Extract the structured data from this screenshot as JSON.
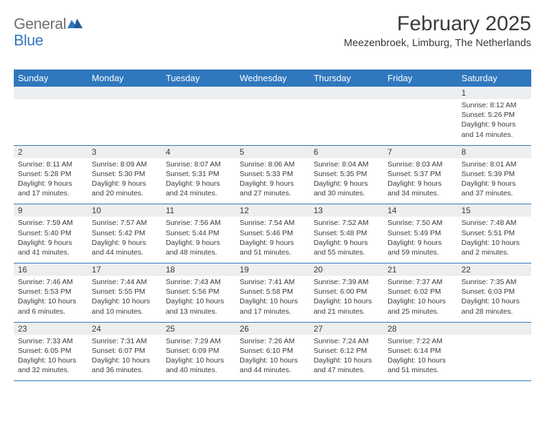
{
  "logo": {
    "general": "General",
    "blue": "Blue"
  },
  "title": "February 2025",
  "location": "Meezenbroek, Limburg, The Netherlands",
  "colors": {
    "header_bg": "#2f78bd",
    "header_fg": "#ffffff",
    "daynum_bg": "#eceeef",
    "text": "#3a3a3a",
    "logo_gray": "#6b6f73",
    "logo_blue": "#2f78bd",
    "rule": "#2f78bd",
    "background": "#ffffff"
  },
  "day_headers": [
    "Sunday",
    "Monday",
    "Tuesday",
    "Wednesday",
    "Thursday",
    "Friday",
    "Saturday"
  ],
  "weeks": [
    [
      {
        "n": "",
        "lines": [
          "",
          "",
          "",
          ""
        ]
      },
      {
        "n": "",
        "lines": [
          "",
          "",
          "",
          ""
        ]
      },
      {
        "n": "",
        "lines": [
          "",
          "",
          "",
          ""
        ]
      },
      {
        "n": "",
        "lines": [
          "",
          "",
          "",
          ""
        ]
      },
      {
        "n": "",
        "lines": [
          "",
          "",
          "",
          ""
        ]
      },
      {
        "n": "",
        "lines": [
          "",
          "",
          "",
          ""
        ]
      },
      {
        "n": "1",
        "lines": [
          "Sunrise: 8:12 AM",
          "Sunset: 5:26 PM",
          "Daylight: 9 hours",
          "and 14 minutes."
        ]
      }
    ],
    [
      {
        "n": "2",
        "lines": [
          "Sunrise: 8:11 AM",
          "Sunset: 5:28 PM",
          "Daylight: 9 hours",
          "and 17 minutes."
        ]
      },
      {
        "n": "3",
        "lines": [
          "Sunrise: 8:09 AM",
          "Sunset: 5:30 PM",
          "Daylight: 9 hours",
          "and 20 minutes."
        ]
      },
      {
        "n": "4",
        "lines": [
          "Sunrise: 8:07 AM",
          "Sunset: 5:31 PM",
          "Daylight: 9 hours",
          "and 24 minutes."
        ]
      },
      {
        "n": "5",
        "lines": [
          "Sunrise: 8:06 AM",
          "Sunset: 5:33 PM",
          "Daylight: 9 hours",
          "and 27 minutes."
        ]
      },
      {
        "n": "6",
        "lines": [
          "Sunrise: 8:04 AM",
          "Sunset: 5:35 PM",
          "Daylight: 9 hours",
          "and 30 minutes."
        ]
      },
      {
        "n": "7",
        "lines": [
          "Sunrise: 8:03 AM",
          "Sunset: 5:37 PM",
          "Daylight: 9 hours",
          "and 34 minutes."
        ]
      },
      {
        "n": "8",
        "lines": [
          "Sunrise: 8:01 AM",
          "Sunset: 5:39 PM",
          "Daylight: 9 hours",
          "and 37 minutes."
        ]
      }
    ],
    [
      {
        "n": "9",
        "lines": [
          "Sunrise: 7:59 AM",
          "Sunset: 5:40 PM",
          "Daylight: 9 hours",
          "and 41 minutes."
        ]
      },
      {
        "n": "10",
        "lines": [
          "Sunrise: 7:57 AM",
          "Sunset: 5:42 PM",
          "Daylight: 9 hours",
          "and 44 minutes."
        ]
      },
      {
        "n": "11",
        "lines": [
          "Sunrise: 7:56 AM",
          "Sunset: 5:44 PM",
          "Daylight: 9 hours",
          "and 48 minutes."
        ]
      },
      {
        "n": "12",
        "lines": [
          "Sunrise: 7:54 AM",
          "Sunset: 5:46 PM",
          "Daylight: 9 hours",
          "and 51 minutes."
        ]
      },
      {
        "n": "13",
        "lines": [
          "Sunrise: 7:52 AM",
          "Sunset: 5:48 PM",
          "Daylight: 9 hours",
          "and 55 minutes."
        ]
      },
      {
        "n": "14",
        "lines": [
          "Sunrise: 7:50 AM",
          "Sunset: 5:49 PM",
          "Daylight: 9 hours",
          "and 59 minutes."
        ]
      },
      {
        "n": "15",
        "lines": [
          "Sunrise: 7:48 AM",
          "Sunset: 5:51 PM",
          "Daylight: 10 hours",
          "and 2 minutes."
        ]
      }
    ],
    [
      {
        "n": "16",
        "lines": [
          "Sunrise: 7:46 AM",
          "Sunset: 5:53 PM",
          "Daylight: 10 hours",
          "and 6 minutes."
        ]
      },
      {
        "n": "17",
        "lines": [
          "Sunrise: 7:44 AM",
          "Sunset: 5:55 PM",
          "Daylight: 10 hours",
          "and 10 minutes."
        ]
      },
      {
        "n": "18",
        "lines": [
          "Sunrise: 7:43 AM",
          "Sunset: 5:56 PM",
          "Daylight: 10 hours",
          "and 13 minutes."
        ]
      },
      {
        "n": "19",
        "lines": [
          "Sunrise: 7:41 AM",
          "Sunset: 5:58 PM",
          "Daylight: 10 hours",
          "and 17 minutes."
        ]
      },
      {
        "n": "20",
        "lines": [
          "Sunrise: 7:39 AM",
          "Sunset: 6:00 PM",
          "Daylight: 10 hours",
          "and 21 minutes."
        ]
      },
      {
        "n": "21",
        "lines": [
          "Sunrise: 7:37 AM",
          "Sunset: 6:02 PM",
          "Daylight: 10 hours",
          "and 25 minutes."
        ]
      },
      {
        "n": "22",
        "lines": [
          "Sunrise: 7:35 AM",
          "Sunset: 6:03 PM",
          "Daylight: 10 hours",
          "and 28 minutes."
        ]
      }
    ],
    [
      {
        "n": "23",
        "lines": [
          "Sunrise: 7:33 AM",
          "Sunset: 6:05 PM",
          "Daylight: 10 hours",
          "and 32 minutes."
        ]
      },
      {
        "n": "24",
        "lines": [
          "Sunrise: 7:31 AM",
          "Sunset: 6:07 PM",
          "Daylight: 10 hours",
          "and 36 minutes."
        ]
      },
      {
        "n": "25",
        "lines": [
          "Sunrise: 7:29 AM",
          "Sunset: 6:09 PM",
          "Daylight: 10 hours",
          "and 40 minutes."
        ]
      },
      {
        "n": "26",
        "lines": [
          "Sunrise: 7:26 AM",
          "Sunset: 6:10 PM",
          "Daylight: 10 hours",
          "and 44 minutes."
        ]
      },
      {
        "n": "27",
        "lines": [
          "Sunrise: 7:24 AM",
          "Sunset: 6:12 PM",
          "Daylight: 10 hours",
          "and 47 minutes."
        ]
      },
      {
        "n": "28",
        "lines": [
          "Sunrise: 7:22 AM",
          "Sunset: 6:14 PM",
          "Daylight: 10 hours",
          "and 51 minutes."
        ]
      },
      {
        "n": "",
        "lines": [
          "",
          "",
          "",
          ""
        ]
      }
    ]
  ]
}
